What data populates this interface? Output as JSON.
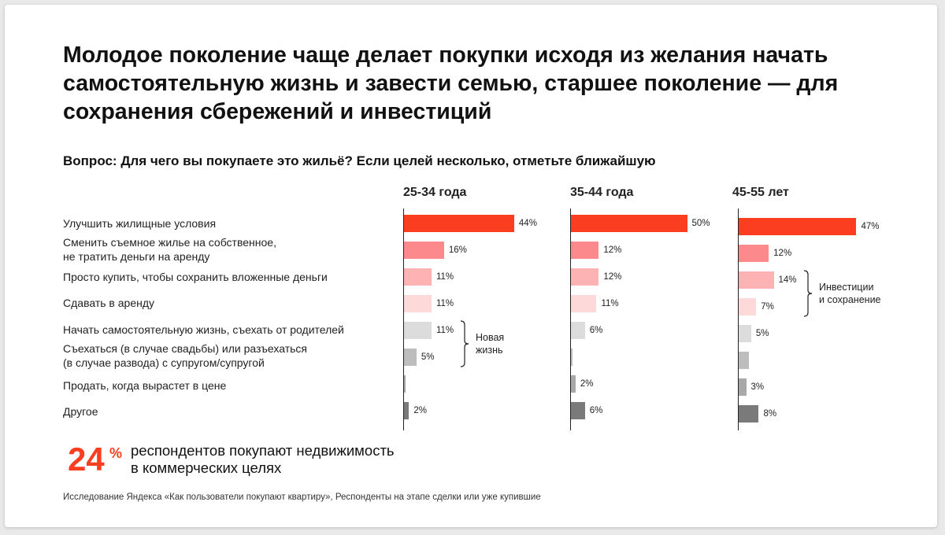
{
  "title": "Молодое поколение чаще делает покупки исходя из желания начать самостоятельную жизнь и завести семью, старшее поколение — для сохранения сбережений и инвестиций",
  "question": "Вопрос: Для чего вы покупаете это жильё? Если целей несколько, отметьте ближайшую",
  "chart_data": {
    "type": "bar",
    "orientation": "horizontal",
    "categories": [
      "Улучшить жилищные условия",
      "Сменить съемное жилье на собственное,\nне тратить деньги на аренду",
      "Просто купить, чтобы сохранить вложенные деньги",
      "Сдавать в аренду",
      "Начать самостоятельную жизнь, съехать от родителей",
      "Съехаться (в случае свадьбы) или разъехаться\n(в случае развода) с супругом/супругой",
      "Продать, когда вырастет в цене",
      "Другое"
    ],
    "series": [
      {
        "name": "25-34 года",
        "values": [
          44,
          16,
          11,
          11,
          11,
          5,
          0.5,
          2
        ],
        "labels": [
          "44%",
          "16%",
          "11%",
          "11%",
          "11%",
          "5%",
          "",
          "2%"
        ]
      },
      {
        "name": "35-44 года",
        "values": [
          50,
          12,
          12,
          11,
          6,
          0.5,
          2,
          6
        ],
        "labels": [
          "50%",
          "12%",
          "12%",
          "11%",
          "6%",
          "",
          "2%",
          "6%"
        ]
      },
      {
        "name": "45-55 лет",
        "values": [
          47,
          12,
          14,
          7,
          5,
          4,
          3,
          8
        ],
        "labels": [
          "47%",
          "12%",
          "14%",
          "7%",
          "5%",
          "",
          "3%",
          "8%"
        ]
      }
    ],
    "category_colors": [
      "#fb3e20",
      "#fc8a8c",
      "#fdb3b3",
      "#fdd9d9",
      "#dcdcdc",
      "#bdbdbd",
      "#a8a8a8",
      "#7a7a7a"
    ],
    "annotations": [
      {
        "text": "Новая\nжизнь",
        "series": 0,
        "rows": [
          4,
          5
        ]
      },
      {
        "text": "Инвестиции\nи сохранение",
        "series": 2,
        "rows": [
          2,
          3
        ]
      }
    ]
  },
  "highlight": {
    "number": "24",
    "unit": "%",
    "text": "респондентов покупают недвижимость\nв коммерческих целях"
  },
  "footnote": "Исследование Яндекса «Как пользователи покупают квартиру», Респонденты на этапе сделки или уже купившие"
}
